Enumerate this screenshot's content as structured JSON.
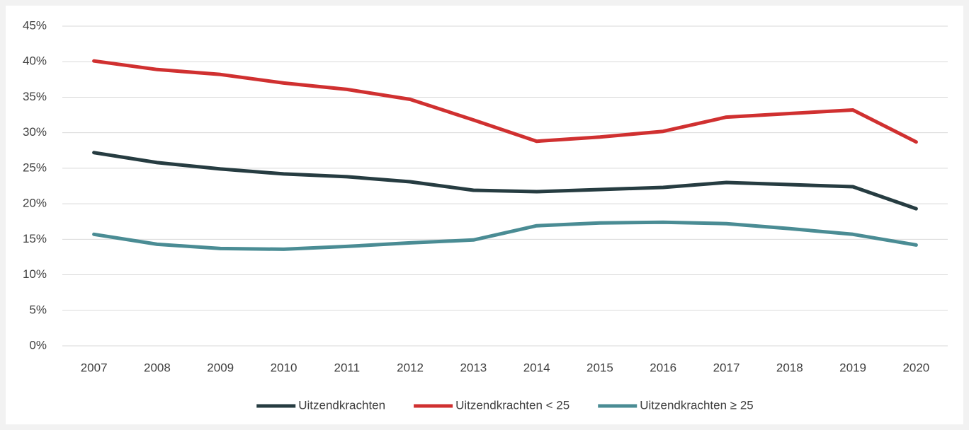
{
  "chart_data": {
    "type": "line",
    "categories": [
      "2007",
      "2008",
      "2009",
      "2010",
      "2011",
      "2012",
      "2013",
      "2014",
      "2015",
      "2016",
      "2017",
      "2018",
      "2019",
      "2020"
    ],
    "series": [
      {
        "name": "Uitzendkrachten",
        "color": "#263c41",
        "values": [
          27.2,
          25.8,
          24.9,
          24.2,
          23.8,
          23.1,
          21.9,
          21.7,
          22.0,
          22.3,
          23.0,
          22.7,
          22.4,
          19.3
        ]
      },
      {
        "name": "Uitzendkrachten < 25",
        "color": "#d03030",
        "values": [
          40.1,
          38.9,
          38.2,
          37.0,
          36.1,
          34.7,
          31.8,
          28.8,
          29.4,
          30.2,
          32.2,
          32.7,
          33.2,
          28.7
        ]
      },
      {
        "name": "Uitzendkrachten ≥ 25",
        "color": "#4a8c94",
        "values": [
          15.7,
          14.3,
          13.7,
          13.6,
          14.0,
          14.5,
          14.9,
          16.9,
          17.3,
          17.4,
          17.2,
          16.5,
          15.7,
          14.2
        ]
      }
    ],
    "ylim": [
      0,
      45
    ],
    "yticks": [
      {
        "value": 0,
        "label": "0%"
      },
      {
        "value": 5,
        "label": "5%"
      },
      {
        "value": 10,
        "label": "10%"
      },
      {
        "value": 15,
        "label": "15%"
      },
      {
        "value": 20,
        "label": "20%"
      },
      {
        "value": 25,
        "label": "25%"
      },
      {
        "value": 30,
        "label": "30%"
      },
      {
        "value": 35,
        "label": "35%"
      },
      {
        "value": 40,
        "label": "40%"
      },
      {
        "value": 45,
        "label": "45%"
      }
    ],
    "grid": true,
    "legend": "bottom"
  }
}
